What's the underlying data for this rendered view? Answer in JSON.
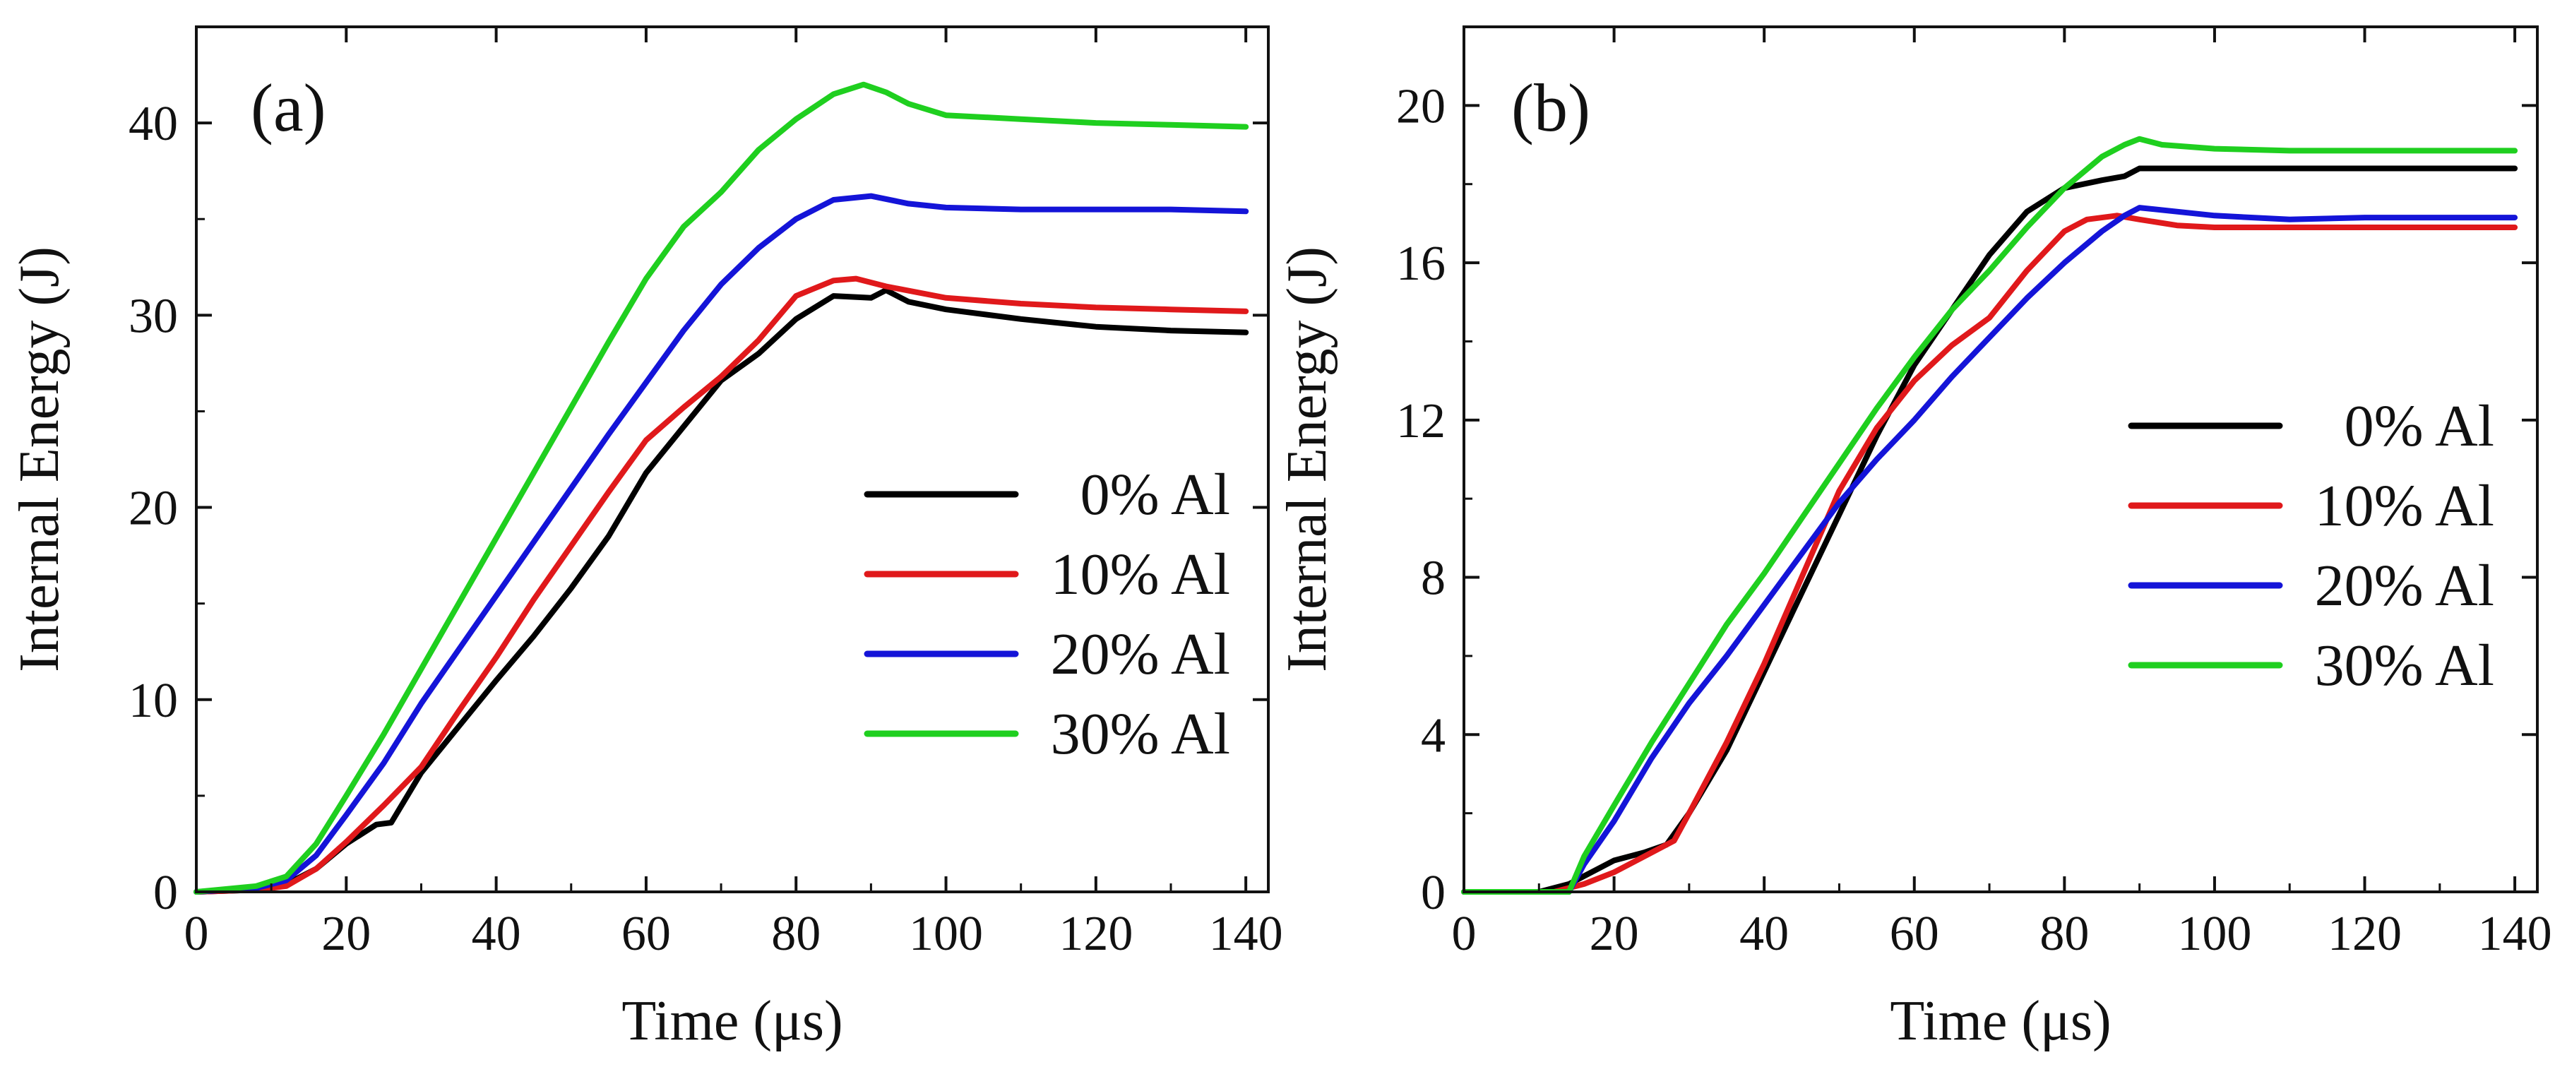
{
  "chart_data": [
    {
      "type": "line",
      "panel_label": "(a)",
      "xlabel": "Time (μs)",
      "ylabel": "Internal Energy (J)",
      "xlim": [
        0,
        143
      ],
      "ylim": [
        0,
        45
      ],
      "xticks": [
        0,
        20,
        40,
        60,
        80,
        100,
        120,
        140
      ],
      "yticks": [
        0,
        10,
        20,
        30,
        40
      ],
      "legend_position": "center-right",
      "series": [
        {
          "name": "0% Al",
          "color": "#000000",
          "x": [
            0,
            8,
            12,
            16,
            20,
            24,
            26,
            30,
            35,
            40,
            45,
            50,
            55,
            60,
            65,
            70,
            75,
            80,
            85,
            90,
            92,
            95,
            100,
            110,
            120,
            130,
            140
          ],
          "y": [
            0,
            0.1,
            0.4,
            1.2,
            2.5,
            3.5,
            3.6,
            6.2,
            8.6,
            11.0,
            13.3,
            15.8,
            18.5,
            21.8,
            24.2,
            26.6,
            28.0,
            29.8,
            31.0,
            30.9,
            31.3,
            30.7,
            30.3,
            29.8,
            29.4,
            29.2,
            29.1
          ]
        },
        {
          "name": "10% Al",
          "color": "#e0191b",
          "x": [
            0,
            8,
            12,
            16,
            20,
            25,
            30,
            35,
            40,
            45,
            50,
            55,
            60,
            65,
            70,
            75,
            80,
            85,
            88,
            92,
            100,
            110,
            120,
            130,
            140
          ],
          "y": [
            0,
            0.1,
            0.3,
            1.2,
            2.6,
            4.5,
            6.5,
            9.4,
            12.2,
            15.2,
            18.0,
            20.8,
            23.5,
            25.2,
            26.8,
            28.7,
            31.0,
            31.8,
            31.9,
            31.5,
            30.9,
            30.6,
            30.4,
            30.3,
            30.2
          ]
        },
        {
          "name": "20% Al",
          "color": "#1414d8",
          "x": [
            0,
            8,
            12,
            16,
            20,
            25,
            30,
            35,
            40,
            45,
            50,
            55,
            60,
            65,
            70,
            75,
            80,
            85,
            90,
            95,
            100,
            110,
            120,
            130,
            140
          ],
          "y": [
            0,
            0.2,
            0.6,
            1.9,
            4.0,
            6.7,
            9.8,
            12.6,
            15.4,
            18.2,
            21.0,
            23.8,
            26.5,
            29.2,
            31.6,
            33.5,
            35.0,
            36.0,
            36.2,
            35.8,
            35.6,
            35.5,
            35.5,
            35.5,
            35.4
          ]
        },
        {
          "name": "30% Al",
          "color": "#1fcf1f",
          "x": [
            0,
            8,
            12,
            16,
            20,
            25,
            30,
            35,
            40,
            45,
            50,
            55,
            60,
            65,
            70,
            75,
            80,
            85,
            89,
            92,
            95,
            100,
            110,
            120,
            130,
            140
          ],
          "y": [
            0,
            0.3,
            0.8,
            2.5,
            5.0,
            8.2,
            11.6,
            15.0,
            18.4,
            21.8,
            25.2,
            28.6,
            31.9,
            34.6,
            36.4,
            38.6,
            40.2,
            41.5,
            42.0,
            41.6,
            41.0,
            40.4,
            40.2,
            40.0,
            39.9,
            39.8
          ]
        }
      ]
    },
    {
      "type": "line",
      "panel_label": "(b)",
      "xlabel": "Time (μs)",
      "ylabel": "Internal Energy (J)",
      "xlim": [
        0,
        143
      ],
      "ylim": [
        0,
        22
      ],
      "xticks": [
        0,
        20,
        40,
        60,
        80,
        100,
        120,
        140
      ],
      "yticks": [
        0,
        4,
        8,
        12,
        16,
        20
      ],
      "legend_position": "center-right",
      "series": [
        {
          "name": "0% Al",
          "color": "#000000",
          "x": [
            0,
            10,
            14,
            16,
            20,
            24,
            27,
            30,
            35,
            40,
            45,
            50,
            55,
            60,
            65,
            70,
            75,
            80,
            85,
            88,
            90,
            95,
            100,
            110,
            120,
            130,
            140
          ],
          "y": [
            0,
            0,
            0.2,
            0.4,
            0.8,
            1.0,
            1.2,
            2.0,
            3.6,
            5.6,
            7.6,
            9.6,
            11.6,
            13.4,
            14.8,
            16.2,
            17.3,
            17.9,
            18.1,
            18.2,
            18.4,
            18.4,
            18.4,
            18.4,
            18.4,
            18.4,
            18.4
          ]
        },
        {
          "name": "10% Al",
          "color": "#e0191b",
          "x": [
            0,
            12,
            16,
            20,
            24,
            28,
            30,
            35,
            40,
            45,
            50,
            55,
            60,
            65,
            70,
            75,
            80,
            83,
            87,
            90,
            95,
            100,
            110,
            120,
            130,
            140
          ],
          "y": [
            0,
            0,
            0.2,
            0.5,
            0.9,
            1.3,
            2.0,
            3.8,
            5.8,
            8.0,
            10.2,
            11.8,
            13.0,
            13.9,
            14.6,
            15.8,
            16.8,
            17.1,
            17.2,
            17.1,
            16.95,
            16.9,
            16.9,
            16.9,
            16.9,
            16.9
          ]
        },
        {
          "name": "20% Al",
          "color": "#1414d8",
          "x": [
            0,
            14,
            16,
            20,
            25,
            30,
            35,
            40,
            45,
            50,
            55,
            60,
            65,
            70,
            75,
            80,
            85,
            88,
            90,
            95,
            100,
            110,
            120,
            130,
            140
          ],
          "y": [
            0,
            0,
            0.7,
            1.8,
            3.4,
            4.8,
            6.0,
            7.3,
            8.6,
            9.9,
            11.0,
            12.0,
            13.1,
            14.1,
            15.1,
            16.0,
            16.8,
            17.2,
            17.4,
            17.3,
            17.2,
            17.1,
            17.15,
            17.15,
            17.15
          ]
        },
        {
          "name": "30% Al",
          "color": "#1fcf1f",
          "x": [
            0,
            14,
            16,
            20,
            25,
            30,
            35,
            40,
            45,
            50,
            55,
            60,
            65,
            70,
            75,
            80,
            85,
            88,
            90,
            93,
            100,
            110,
            120,
            130,
            140
          ],
          "y": [
            0,
            0,
            0.9,
            2.2,
            3.8,
            5.3,
            6.8,
            8.1,
            9.5,
            10.9,
            12.3,
            13.6,
            14.8,
            15.8,
            16.9,
            17.9,
            18.7,
            19.0,
            19.15,
            19.0,
            18.9,
            18.85,
            18.85,
            18.85,
            18.85
          ]
        }
      ]
    }
  ]
}
